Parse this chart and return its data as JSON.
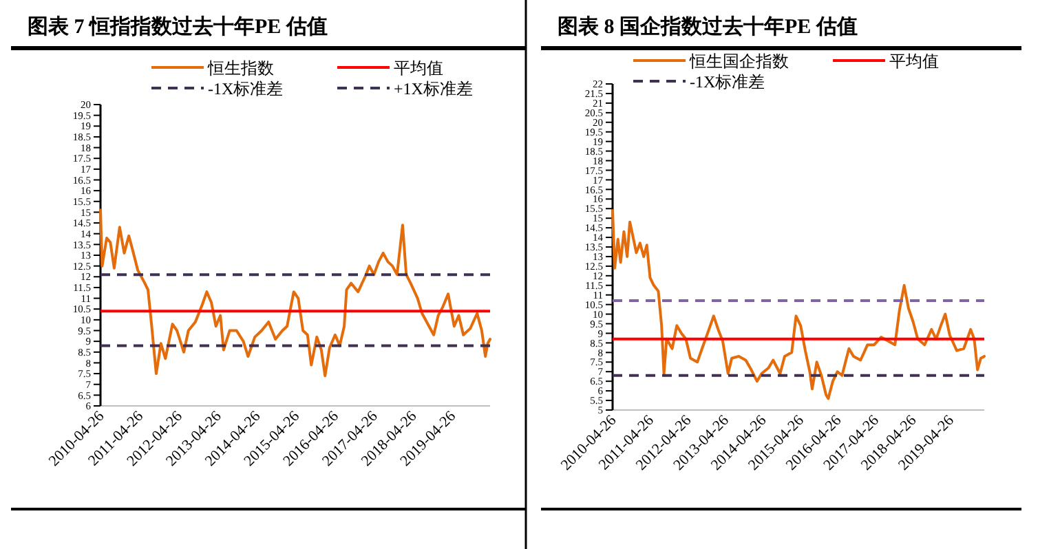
{
  "chart_data": [
    {
      "type": "line",
      "title": "图表 7  恒指指数过去十年PE 估值",
      "legend": "top",
      "xlim": [
        "2010-04-26",
        "2020-04-16"
      ],
      "xticks": [
        "2010-04-26",
        "2011-04-26",
        "2012-04-26",
        "2013-04-26",
        "2014-04-26",
        "2015-04-26",
        "2016-04-26",
        "2017-04-26",
        "2018-04-26",
        "2019-04-26"
      ],
      "ylim": [
        6,
        20
      ],
      "yticks": [
        6,
        6.5,
        7,
        7.5,
        8,
        8.5,
        9,
        9.5,
        10,
        10.5,
        11,
        11.5,
        12,
        12.5,
        13,
        13.5,
        14,
        14.5,
        15,
        15.5,
        16,
        16.5,
        17,
        17.5,
        18,
        18.5,
        19,
        19.5,
        20
      ],
      "series": [
        {
          "name": "恒生指数",
          "color": "#e46c0a",
          "x": [
            "2010-04-26",
            "2010-05-11",
            "2010-06-23",
            "2010-07-27",
            "2010-09-01",
            "2010-10-22",
            "2010-12-04",
            "2011-01-16",
            "2011-02-28",
            "2011-04-10",
            "2011-05-02",
            "2011-06-14",
            "2011-07-14",
            "2011-08-18",
            "2011-09-29",
            "2011-11-12",
            "2011-12-24",
            "2012-02-28",
            "2012-04-10",
            "2012-06-13",
            "2012-07-26",
            "2012-09-29",
            "2012-12-02",
            "2013-01-14",
            "2013-02-26",
            "2013-04-09",
            "2013-05-21",
            "2013-06-20",
            "2013-08-16",
            "2013-10-19",
            "2013-12-22",
            "2014-02-04",
            "2014-04-08",
            "2014-06-11",
            "2014-08-15",
            "2014-10-18",
            "2014-12-22",
            "2015-02-04",
            "2015-04-07",
            "2015-05-19",
            "2015-07-02",
            "2015-08-14",
            "2015-09-18",
            "2015-11-09",
            "2015-12-21",
            "2016-01-25",
            "2016-03-07",
            "2016-04-28",
            "2016-06-10",
            "2016-07-22",
            "2016-08-13",
            "2016-09-25",
            "2016-11-29",
            "2017-02-02",
            "2017-03-14",
            "2017-04-26",
            "2017-06-09",
            "2017-07-21",
            "2017-09-03",
            "2017-10-16",
            "2017-11-28",
            "2018-01-19",
            "2018-02-22",
            "2018-04-04",
            "2018-06-08",
            "2018-07-20",
            "2018-09-23",
            "2018-11-06",
            "2018-12-18",
            "2019-01-30",
            "2019-03-21",
            "2019-05-16",
            "2019-06-28",
            "2019-08-10",
            "2019-10-14",
            "2019-12-17",
            "2020-01-29",
            "2020-03-03",
            "2020-03-25",
            "2020-04-16"
          ],
          "values": [
            15.1,
            12.5,
            13.8,
            13.6,
            12.4,
            14.3,
            13.1,
            13.9,
            13.1,
            12.3,
            12.1,
            11.7,
            11.4,
            9.7,
            7.5,
            8.9,
            8.2,
            9.8,
            9.5,
            8.5,
            9.5,
            9.9,
            10.7,
            11.3,
            10.8,
            9.7,
            10.2,
            8.6,
            9.5,
            9.5,
            9.0,
            8.3,
            9.2,
            9.5,
            9.9,
            9.1,
            9.5,
            9.7,
            11.3,
            11.0,
            9.5,
            9.3,
            7.9,
            9.2,
            8.6,
            7.4,
            8.7,
            9.3,
            8.8,
            9.7,
            11.4,
            11.7,
            11.3,
            12.0,
            12.5,
            12.1,
            12.7,
            13.1,
            12.7,
            12.5,
            12.1,
            14.4,
            12.1,
            11.7,
            11.0,
            10.3,
            9.7,
            9.3,
            10.2,
            10.6,
            11.2,
            9.7,
            10.2,
            9.3,
            9.6,
            10.3,
            9.5,
            8.3,
            8.9,
            9.1
          ]
        }
      ],
      "ref_lines": [
        {
          "axis": "y",
          "value": 10.4,
          "label": "平均值",
          "color": "#ff0000",
          "line_style": "solid"
        },
        {
          "axis": "y",
          "value": 8.8,
          "label": "-1X标准差",
          "color": "#403152",
          "line_style": "dashed"
        },
        {
          "axis": "y",
          "value": 12.1,
          "label": "+1X标准差",
          "color": "#403152",
          "line_style": "dashed"
        }
      ]
    },
    {
      "type": "line",
      "title": "图表 8 国企指数过去十年PE 估值",
      "legend": "top",
      "xlim": [
        "2010-04-26",
        "2020-03-23"
      ],
      "xticks": [
        "2010-04-26",
        "2011-04-26",
        "2012-04-26",
        "2013-04-26",
        "2014-04-26",
        "2015-04-26",
        "2016-04-26",
        "2017-04-26",
        "2018-04-26",
        "2019-04-26"
      ],
      "ylim": [
        5,
        22
      ],
      "yticks": [
        5,
        5.5,
        6,
        6.5,
        7,
        7.5,
        8,
        8.5,
        9,
        9.5,
        10,
        10.5,
        11,
        11.5,
        12,
        12.5,
        13,
        13.5,
        14,
        14.5,
        15,
        15.5,
        16,
        16.5,
        17,
        17.5,
        18,
        18.5,
        19,
        19.5,
        20,
        20.5,
        21,
        21.5,
        22
      ],
      "series": [
        {
          "name": "恒生国企指数",
          "color": "#e46c0a",
          "x": [
            "2010-04-26",
            "2010-05-16",
            "2010-06-17",
            "2010-07-13",
            "2010-08-14",
            "2010-09-15",
            "2010-10-11",
            "2010-11-12",
            "2010-12-13",
            "2011-01-18",
            "2011-02-23",
            "2011-03-25",
            "2011-04-26",
            "2011-06-01",
            "2011-07-15",
            "2011-08-16",
            "2011-09-08",
            "2011-10-04",
            "2011-11-27",
            "2012-01-11",
            "2012-02-25",
            "2012-04-09",
            "2012-05-23",
            "2012-07-29",
            "2012-09-13",
            "2012-11-19",
            "2013-01-04",
            "2013-02-17",
            "2013-04-02",
            "2013-05-24",
            "2013-06-29",
            "2013-09-06",
            "2013-11-12",
            "2013-12-26",
            "2014-03-02",
            "2014-04-16",
            "2014-06-22",
            "2014-08-06",
            "2014-10-13",
            "2014-11-26",
            "2015-02-03",
            "2015-03-17",
            "2015-05-01",
            "2015-06-15",
            "2015-07-29",
            "2015-08-21",
            "2015-10-05",
            "2015-11-19",
            "2016-01-03",
            "2016-01-25",
            "2016-03-09",
            "2016-04-23",
            "2016-06-07",
            "2016-08-13",
            "2016-09-27",
            "2016-12-04",
            "2017-02-10",
            "2017-04-16",
            "2017-06-22",
            "2017-08-28",
            "2017-11-04",
            "2017-12-18",
            "2018-02-02",
            "2018-03-16",
            "2018-04-30",
            "2018-06-14",
            "2018-08-20",
            "2018-10-26",
            "2018-12-10",
            "2019-01-25",
            "2019-03-09",
            "2019-04-22",
            "2019-06-29",
            "2019-09-05",
            "2019-11-11",
            "2019-12-16",
            "2020-01-17",
            "2020-02-18",
            "2020-03-23"
          ],
          "values": [
            15.4,
            12.4,
            13.9,
            12.7,
            14.3,
            13.0,
            14.8,
            14.0,
            13.2,
            13.7,
            13.0,
            13.6,
            11.9,
            11.5,
            11.2,
            9.4,
            6.9,
            8.7,
            8.2,
            9.4,
            9.0,
            8.7,
            7.7,
            7.5,
            8.2,
            9.2,
            9.9,
            9.2,
            8.6,
            6.9,
            7.7,
            7.8,
            7.6,
            7.2,
            6.5,
            6.9,
            7.2,
            7.6,
            6.9,
            7.8,
            8.0,
            9.9,
            9.4,
            8.1,
            7.0,
            6.1,
            7.5,
            6.8,
            5.8,
            5.6,
            6.5,
            7.0,
            6.8,
            8.2,
            7.8,
            7.6,
            8.4,
            8.4,
            8.8,
            8.6,
            8.4,
            10.2,
            11.5,
            10.3,
            9.6,
            8.7,
            8.4,
            9.2,
            8.7,
            9.4,
            10.0,
            8.9,
            8.1,
            8.2,
            9.2,
            8.7,
            7.1,
            7.7,
            7.8
          ]
        }
      ],
      "ref_lines": [
        {
          "axis": "y",
          "value": 8.7,
          "label": "平均值",
          "color": "#ff0000",
          "line_style": "solid"
        },
        {
          "axis": "y",
          "value": 6.8,
          "label": "-1X标准差",
          "color": "#403152",
          "line_style": "dashed"
        },
        {
          "axis": "y",
          "value": 10.7,
          "label": null,
          "color": "#8064a2",
          "line_style": "dashed"
        }
      ]
    }
  ]
}
